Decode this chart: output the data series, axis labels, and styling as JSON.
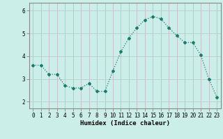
{
  "x": [
    0,
    1,
    2,
    3,
    4,
    5,
    6,
    7,
    8,
    9,
    10,
    11,
    12,
    13,
    14,
    15,
    16,
    17,
    18,
    19,
    20,
    21,
    22,
    23
  ],
  "y": [
    3.6,
    3.6,
    3.2,
    3.2,
    2.7,
    2.6,
    2.6,
    2.8,
    2.45,
    2.45,
    3.35,
    4.2,
    4.8,
    5.25,
    5.6,
    5.75,
    5.65,
    5.25,
    4.9,
    4.6,
    4.6,
    4.05,
    3.0,
    2.2
  ],
  "line_color": "#1a7a6e",
  "marker": "D",
  "marker_size": 2.0,
  "bg_color": "#cceee8",
  "vgrid_color": "#c8b8c8",
  "hgrid_color": "#b8ccc8",
  "xlabel": "Humidex (Indice chaleur)",
  "ylim": [
    1.7,
    6.35
  ],
  "xlim": [
    -0.5,
    23.5
  ],
  "yticks": [
    2,
    3,
    4,
    5,
    6
  ],
  "xticks": [
    0,
    1,
    2,
    3,
    4,
    5,
    6,
    7,
    8,
    9,
    10,
    11,
    12,
    13,
    14,
    15,
    16,
    17,
    18,
    19,
    20,
    21,
    22,
    23
  ],
  "label_fontsize": 6.5,
  "tick_fontsize": 5.5,
  "spine_color": "#888888"
}
